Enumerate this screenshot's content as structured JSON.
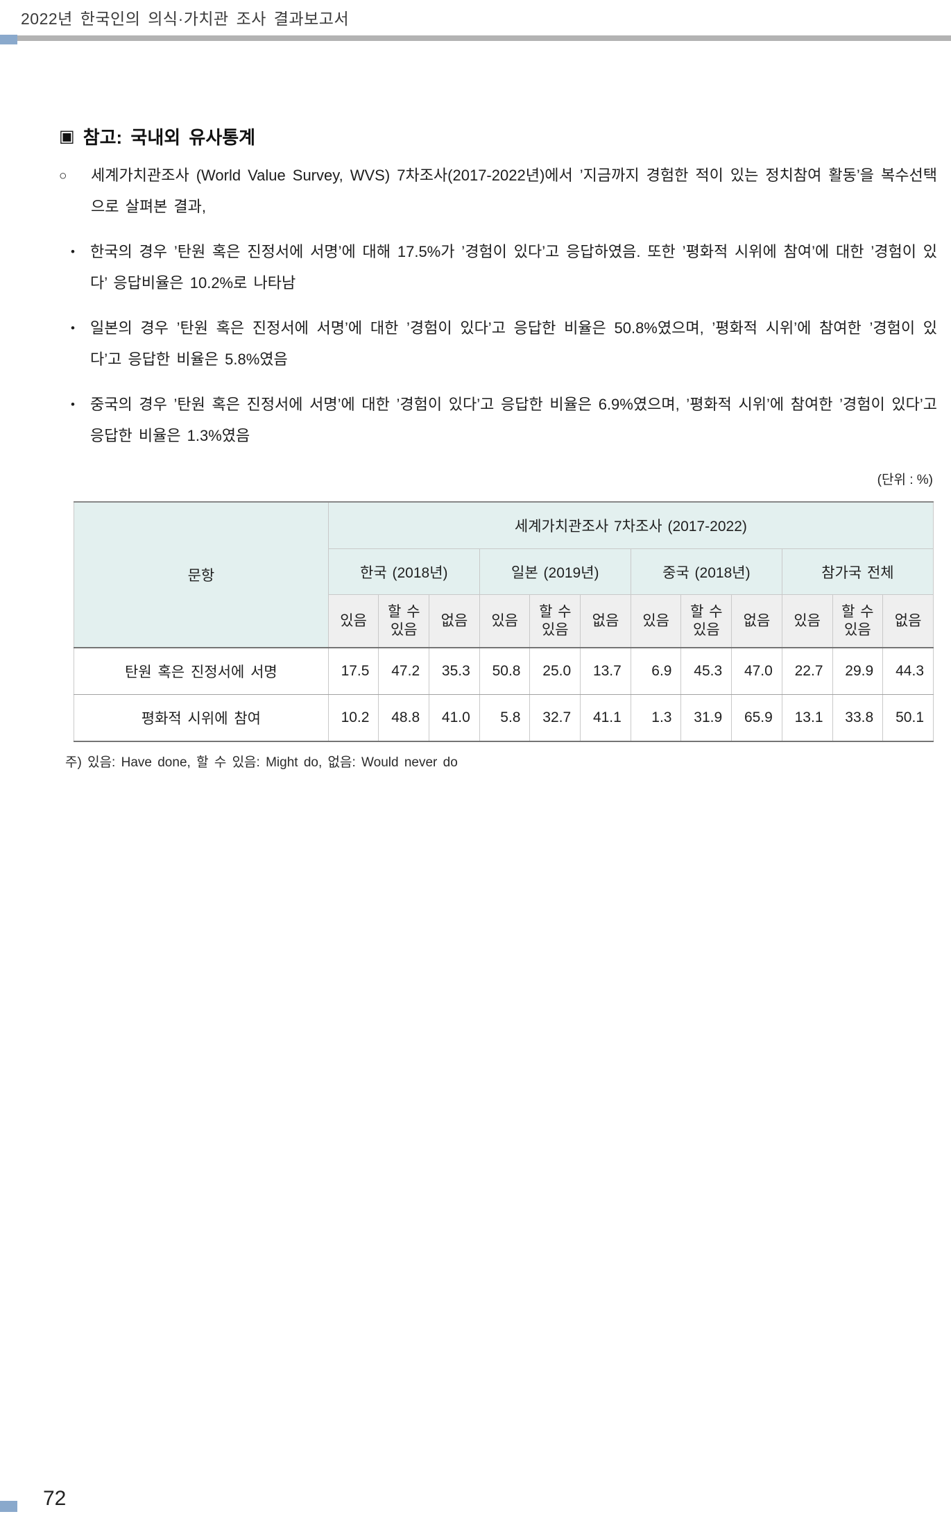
{
  "page": {
    "header_title": "2022년 한국인의 의식·가치관 조사 결과보고서",
    "page_number": "72",
    "colors": {
      "accent_blue": "#8aa9cc",
      "rule_gray": "#b3b3b3",
      "table_header_bg": "#e3f0ef",
      "table_subheader_bg": "#efefef"
    }
  },
  "section": {
    "marker": "▣",
    "title": "참고: 국내외 유사통계"
  },
  "paragraphs": [
    {
      "marker": "○",
      "text": "세계가치관조사 (World Value Survey, WVS) 7차조사(2017-2022년)에서 ’지금까지 경험한 적이 있는 정치참여 활동’을 복수선택으로 살펴본 결과,"
    },
    {
      "marker": "•",
      "text": "한국의 경우 ’탄원 혹은 진정서에 서명’에 대해 17.5%가 ’경험이 있다’고 응답하였음. 또한 ’평화적 시위에 참여’에 대한 ’경험이 있다’ 응답비율은 10.2%로 나타남"
    },
    {
      "marker": "•",
      "text": "일본의 경우 ’탄원 혹은 진정서에 서명’에 대한 ’경험이 있다’고 응답한 비율은 50.8%였으며, ’평화적 시위’에 참여한 ’경험이 있다’고 응답한 비율은 5.8%였음"
    },
    {
      "marker": "•",
      "text": "중국의 경우 ’탄원 혹은 진정서에 서명’에 대한 ’경험이 있다’고 응답한 비율은 6.9%였으며, ’평화적 시위’에 참여한 ’경험이 있다’고 응답한 비율은 1.3%였음"
    }
  ],
  "unit_note": "(단위 : %)",
  "table": {
    "col_question": "문항",
    "survey_header": "세계가치관조사 7차조사 (2017-2022)",
    "groups": [
      "한국 (2018년)",
      "일본 (2019년)",
      "중국 (2018년)",
      "참가국 전체"
    ],
    "sub_headers": [
      "있음",
      "할 수 있음",
      "없음"
    ],
    "rows": [
      {
        "label": "탄원 혹은 진정서에 서명",
        "values": [
          "17.5",
          "47.2",
          "35.3",
          "50.8",
          "25.0",
          "13.7",
          "6.9",
          "45.3",
          "47.0",
          "22.7",
          "29.9",
          "44.3"
        ]
      },
      {
        "label": "평화적 시위에 참여",
        "values": [
          "10.2",
          "48.8",
          "41.0",
          "5.8",
          "32.7",
          "41.1",
          "1.3",
          "31.9",
          "65.9",
          "13.1",
          "33.8",
          "50.1"
        ]
      }
    ]
  },
  "footnote": "주) 있음: Have done, 할 수 있음: Might do, 없음: Would never do"
}
